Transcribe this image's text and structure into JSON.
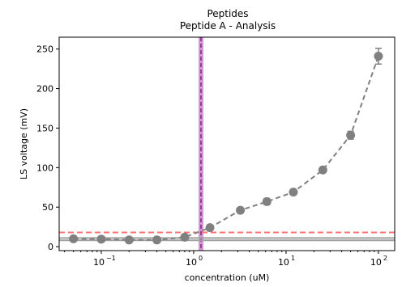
{
  "chart_data": {
    "type": "scatter",
    "title": "Peptides",
    "subtitle": "Peptide A - Analysis",
    "xlabel": "concentration (uM)",
    "ylabel": "LS voltage (mV)",
    "xscale": "log",
    "xlim": [
      0.035,
      150
    ],
    "ylim": [
      -5,
      265
    ],
    "grid": false,
    "x_ticks": [
      {
        "value": 0.1,
        "label": "10",
        "exponent": "−1"
      },
      {
        "value": 1,
        "label": "10",
        "exponent": "0"
      },
      {
        "value": 10,
        "label": "10",
        "exponent": "1"
      },
      {
        "value": 100,
        "label": "10",
        "exponent": "2"
      }
    ],
    "y_ticks": [
      0,
      50,
      100,
      150,
      200,
      250
    ],
    "series": [
      {
        "x": [
          0.05,
          0.1,
          0.2,
          0.4,
          0.8,
          1.5,
          3.2,
          6.2,
          12,
          25,
          50,
          100
        ],
        "y": [
          10,
          9.5,
          8.5,
          8.5,
          12,
          24,
          46,
          57,
          69,
          97,
          141,
          241
        ],
        "error": [
          0,
          0,
          0,
          0,
          0,
          0,
          0,
          4,
          3,
          0,
          5,
          10
        ],
        "color": "#808080",
        "line_style": "dashed"
      }
    ],
    "reference_lines": [
      {
        "orientation": "horizontal",
        "y": 18,
        "color": "#ff7070",
        "style": "dashed"
      },
      {
        "orientation": "horizontal",
        "y": 11,
        "color": "#a0a0a0",
        "style": "solid"
      },
      {
        "orientation": "horizontal",
        "y": 8,
        "color": "#a0a0a0",
        "style": "solid"
      },
      {
        "orientation": "vertical",
        "x": 1.2,
        "color": "#b040b0",
        "style": "band"
      }
    ]
  }
}
